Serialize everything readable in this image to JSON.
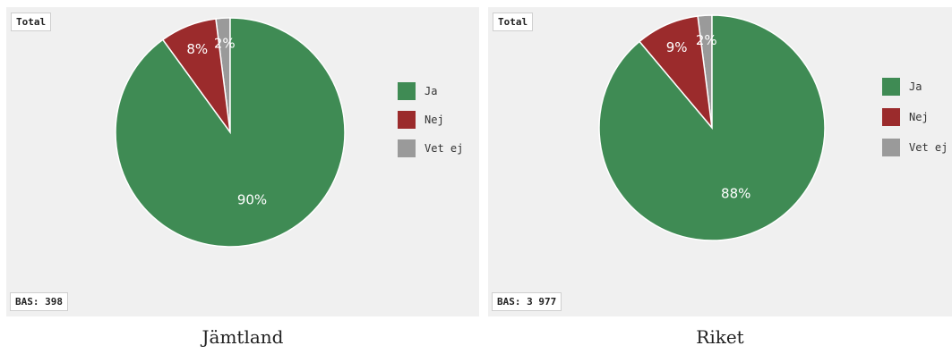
{
  "colors": {
    "ja": "#3f8b54",
    "nej": "#9b2b2c",
    "vet_ej": "#9a9a9a",
    "panel_bg": "#f0f0f0"
  },
  "legend": [
    "Ja",
    "Nej",
    "Vet ej"
  ],
  "chart_data": [
    {
      "type": "pie",
      "title": "Total",
      "base_label": "BAS:",
      "base_value": "398",
      "caption": "Jämtland",
      "categories": [
        "Ja",
        "Nej",
        "Vet ej"
      ],
      "values": [
        90,
        8,
        2
      ],
      "labels": [
        "90%",
        "8%",
        "2%"
      ],
      "unit": "%"
    },
    {
      "type": "pie",
      "title": "Total",
      "base_label": "BAS:",
      "base_value": "3 977",
      "caption": "Riket",
      "categories": [
        "Ja",
        "Nej",
        "Vet ej"
      ],
      "values": [
        88,
        9,
        2
      ],
      "labels": [
        "88%",
        "9%",
        "2%"
      ],
      "unit": "%"
    }
  ]
}
